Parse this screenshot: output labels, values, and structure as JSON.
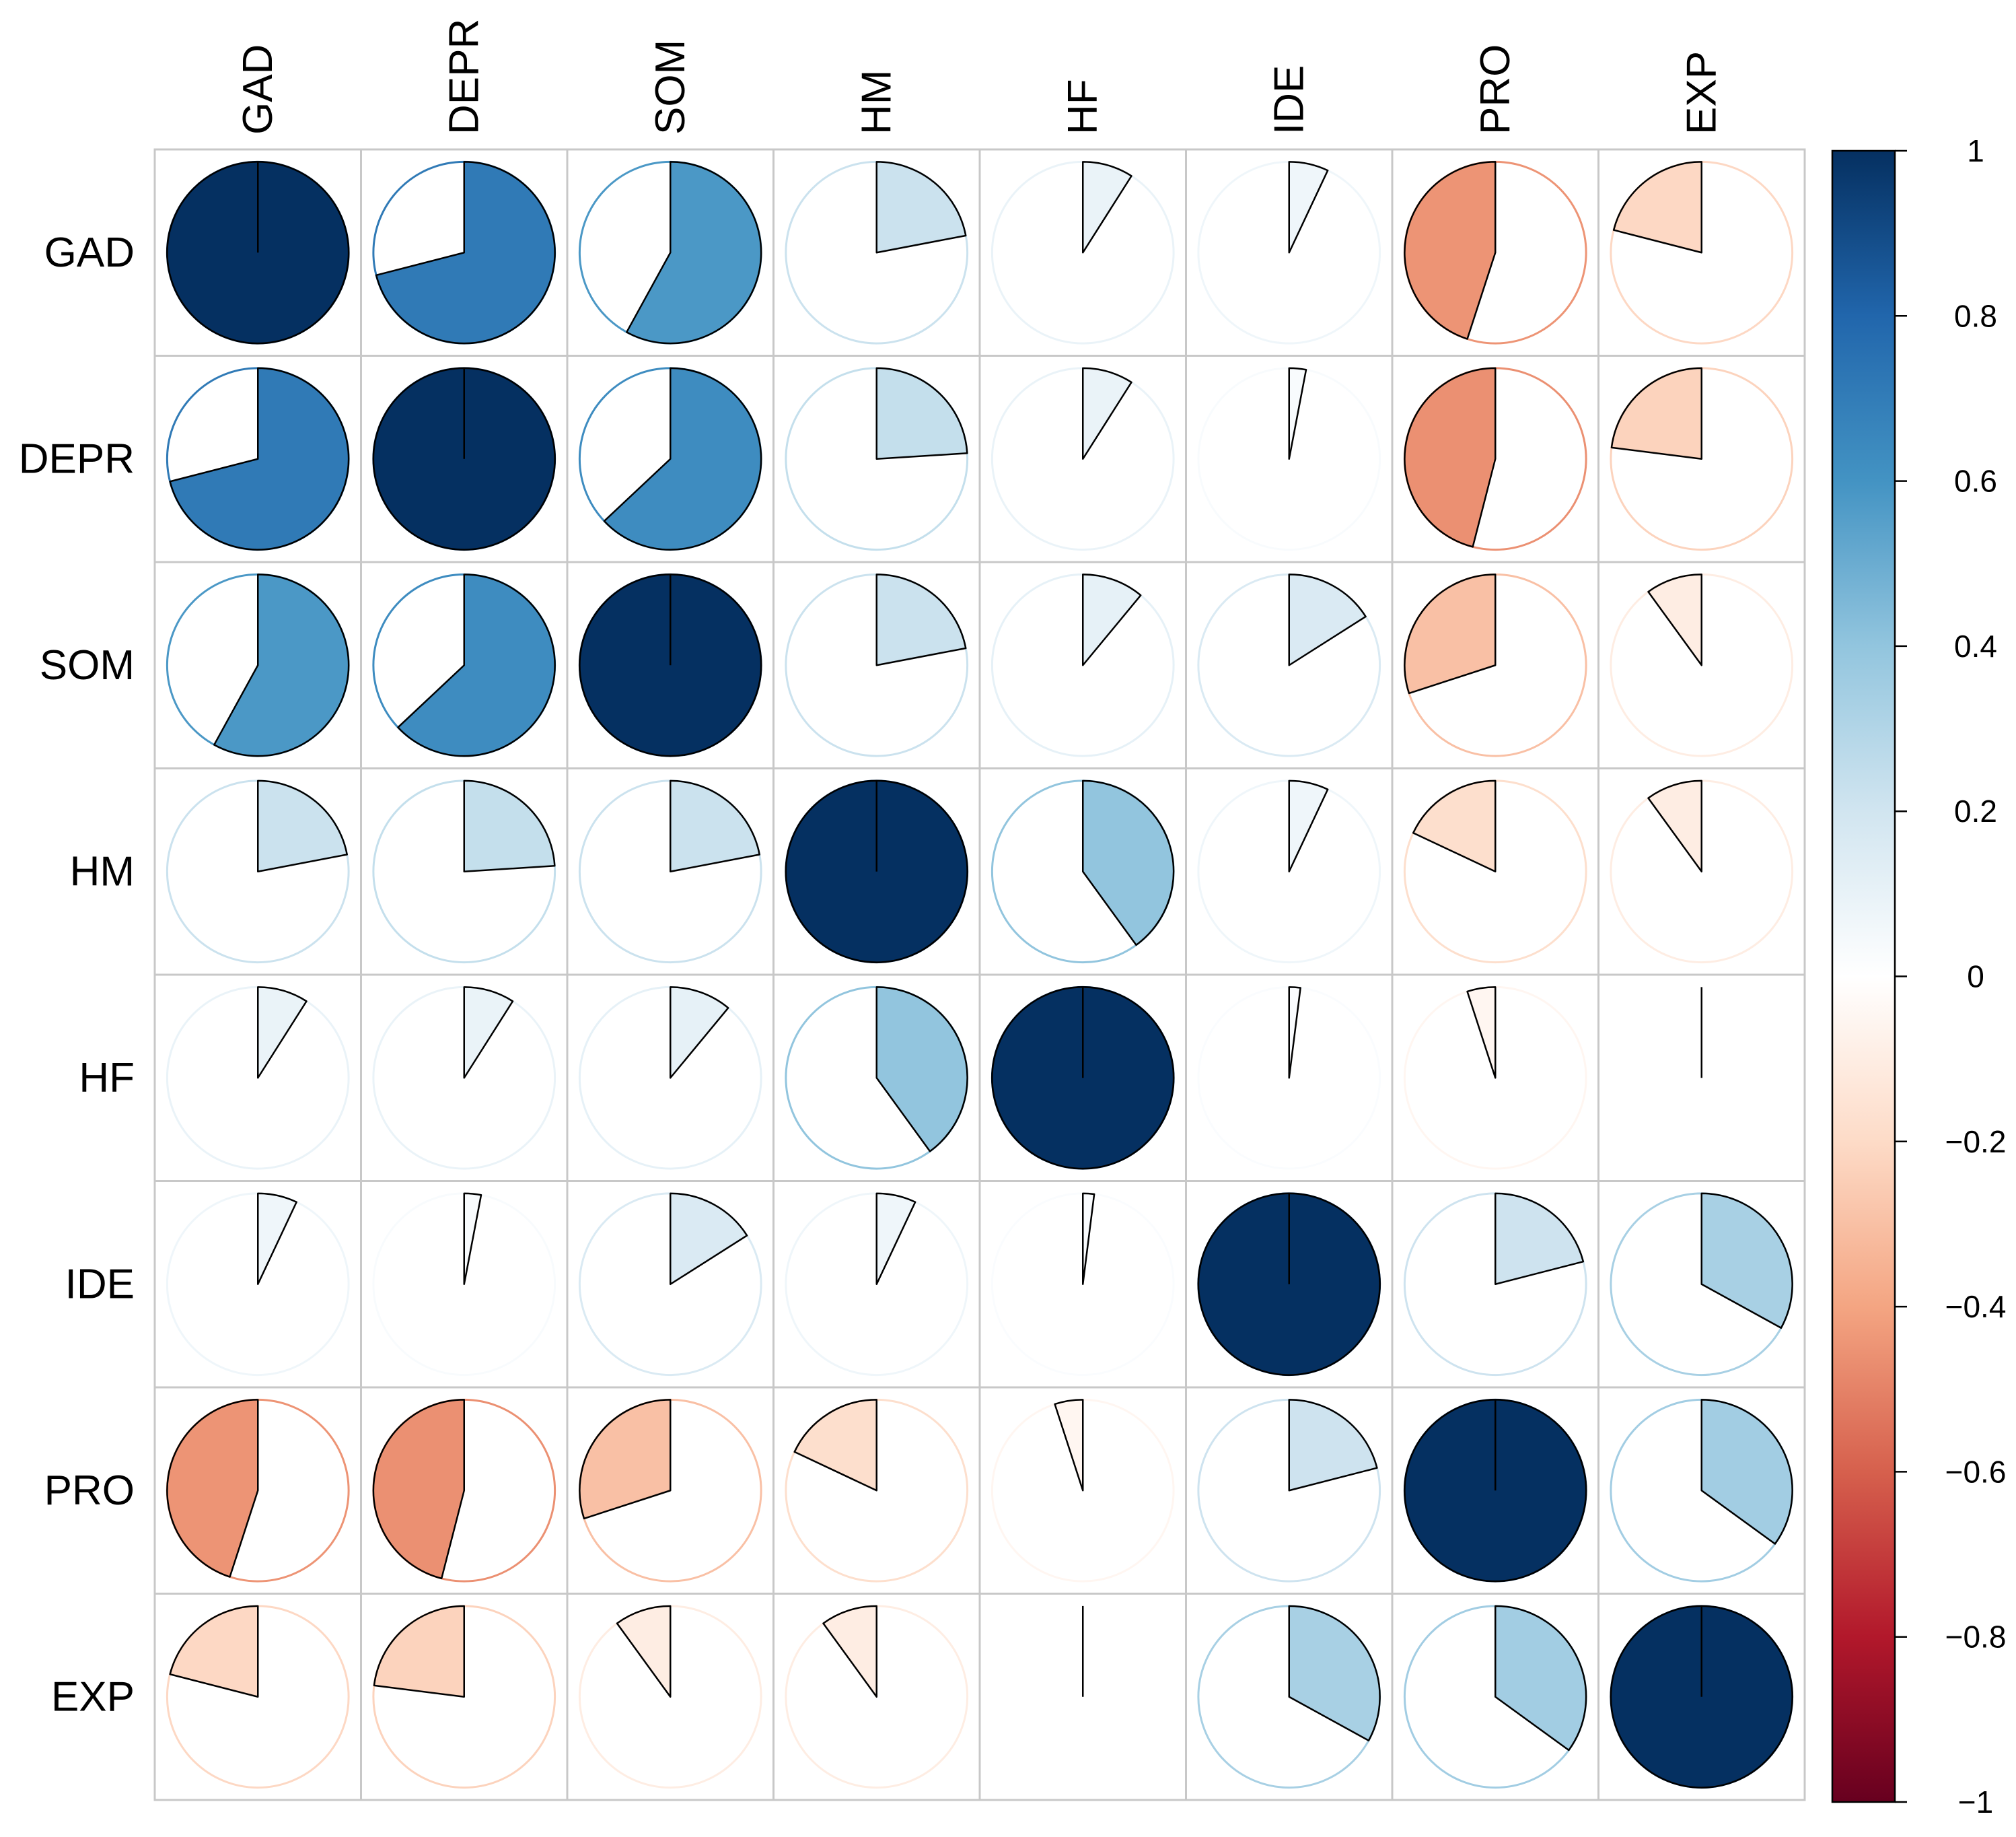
{
  "chart_data": {
    "type": "heatmap",
    "subtype": "correlation-pie-matrix",
    "title": "",
    "variables": [
      "GAD",
      "DEPR",
      "SOM",
      "HM",
      "HF",
      "IDE",
      "PRO",
      "EXP"
    ],
    "matrix": [
      [
        1.0,
        0.71,
        0.58,
        0.22,
        0.09,
        0.07,
        -0.45,
        -0.21
      ],
      [
        0.71,
        1.0,
        0.63,
        0.24,
        0.09,
        0.03,
        -0.46,
        -0.23
      ],
      [
        0.58,
        0.63,
        1.0,
        0.22,
        0.11,
        0.16,
        -0.3,
        -0.1
      ],
      [
        0.22,
        0.24,
        0.22,
        1.0,
        0.4,
        0.07,
        -0.18,
        -0.1
      ],
      [
        0.09,
        0.09,
        0.11,
        0.4,
        1.0,
        0.02,
        -0.05,
        0.0
      ],
      [
        0.07,
        0.03,
        0.16,
        0.07,
        0.02,
        1.0,
        0.21,
        0.33
      ],
      [
        -0.45,
        -0.46,
        -0.3,
        -0.18,
        -0.05,
        0.21,
        1.0,
        0.35
      ],
      [
        -0.21,
        -0.23,
        -0.1,
        -0.1,
        0.0,
        0.33,
        0.35,
        1.0
      ]
    ],
    "colorbar": {
      "range": [
        -1,
        1
      ],
      "ticks": [
        1,
        0.8,
        0.6,
        0.4,
        0.2,
        0,
        -0.2,
        -0.4,
        -0.6,
        -0.8,
        -1
      ],
      "tick_labels": [
        "1",
        "0.8",
        "0.6",
        "0.4",
        "0.2",
        "0",
        "−0.2",
        "−0.4",
        "−0.6",
        "−0.8",
        "−1"
      ],
      "palette": [
        "#67001F",
        "#B2182B",
        "#D6604D",
        "#F4A582",
        "#FDDBC7",
        "#FFFFFF",
        "#D1E5F0",
        "#92C5DE",
        "#4393C3",
        "#2166AC",
        "#053061"
      ]
    },
    "grid": true,
    "legend": "right"
  }
}
